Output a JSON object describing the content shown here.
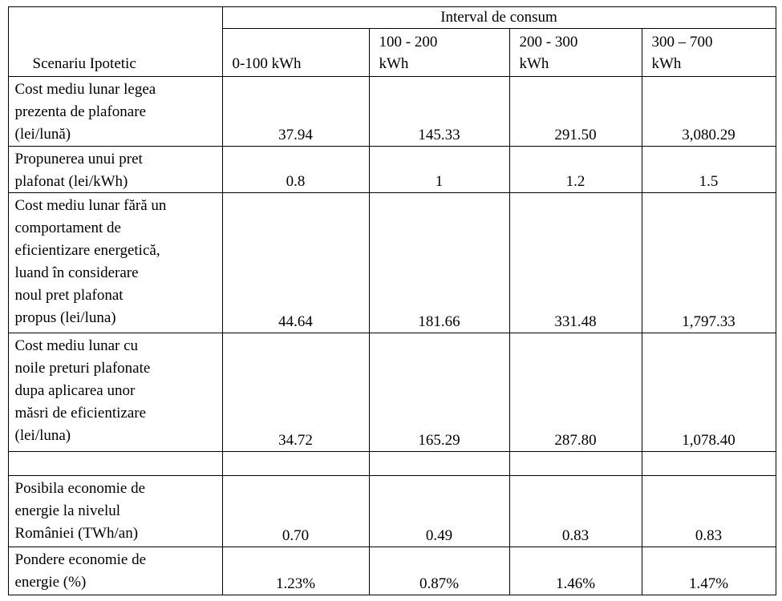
{
  "header": {
    "group": "Interval de consum",
    "corner": "Scenariu Ipotetic",
    "columns": [
      [
        "0-100 kWh"
      ],
      [
        "100 - 200",
        "kWh"
      ],
      [
        "200 - 300",
        "kWh"
      ],
      [
        "300 – 700",
        "kWh"
      ]
    ]
  },
  "rows": [
    {
      "label": [
        "Cost mediu lunar legea",
        "prezenta de plafonare",
        "(lei/lună)"
      ],
      "values": [
        "37.94",
        "145.33",
        "291.50",
        "3,080.29"
      ]
    },
    {
      "label": [
        "Propunerea unui pret",
        "plafonat (lei/kWh)"
      ],
      "values": [
        "0.8",
        "1",
        "1.2",
        "1.5"
      ]
    },
    {
      "label": [
        "Cost mediu lunar fără un",
        "comportament de",
        "eficientizare energetică,",
        "luand în considerare",
        "noul pret plafonat",
        "propus (lei/luna)"
      ],
      "values": [
        "44.64",
        "181.66",
        "331.48",
        "1,797.33"
      ]
    },
    {
      "label": [
        "Cost mediu lunar cu",
        "noile preturi plafonate",
        "dupa aplicarea unor",
        "măsri de eficientizare",
        "(lei/luna)"
      ],
      "values": [
        "34.72",
        "165.29",
        "287.80",
        "1,078.40"
      ]
    },
    {
      "label": [
        "Posibila economie de",
        "energie la nivelul",
        "României (TWh/an)"
      ],
      "values": [
        "0.70",
        "0.49",
        "0.83",
        "0.83"
      ]
    },
    {
      "label": [
        "Pondere economie de",
        "energie (%)"
      ],
      "values": [
        "1.23%",
        "0.87%",
        "1.46%",
        "1.47%"
      ]
    }
  ]
}
